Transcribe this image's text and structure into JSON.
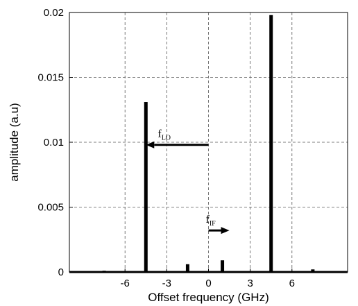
{
  "chart_data": {
    "type": "bar",
    "title": "",
    "xlabel": "Offset frequency (GHz)",
    "ylabel": "amplitude (a.u)",
    "xlim": [
      -10,
      10
    ],
    "ylim": [
      0,
      0.02
    ],
    "xticks": [
      -6,
      -3,
      0,
      3,
      6
    ],
    "xtick_labels": [
      "-6",
      "-3",
      "0",
      "3",
      "6"
    ],
    "yticks": [
      0,
      0.005,
      0.01,
      0.015,
      0.02
    ],
    "ytick_labels": [
      "0",
      "0.005",
      "0.01",
      "0.015",
      "0.02"
    ],
    "grid": true,
    "grid_style": "dashed",
    "series": [
      {
        "color": "#000000",
        "x": [
          -7.5,
          -4.5,
          -1.5,
          1.0,
          4.5,
          7.5
        ],
        "values": [
          0.0001,
          0.0131,
          0.0006,
          0.0009,
          0.0198,
          0.0002
        ]
      }
    ],
    "annotations": [
      {
        "id": "f_lo",
        "text": "f",
        "subscript": "LO",
        "arrow": "left",
        "from_x": 0,
        "to_x": -4.5,
        "y": 0.0098
      },
      {
        "id": "f_if",
        "text": "f",
        "subscript": "IF",
        "arrow": "right",
        "from_x": 0,
        "to_x": 1.5,
        "y": 0.0032
      }
    ]
  }
}
